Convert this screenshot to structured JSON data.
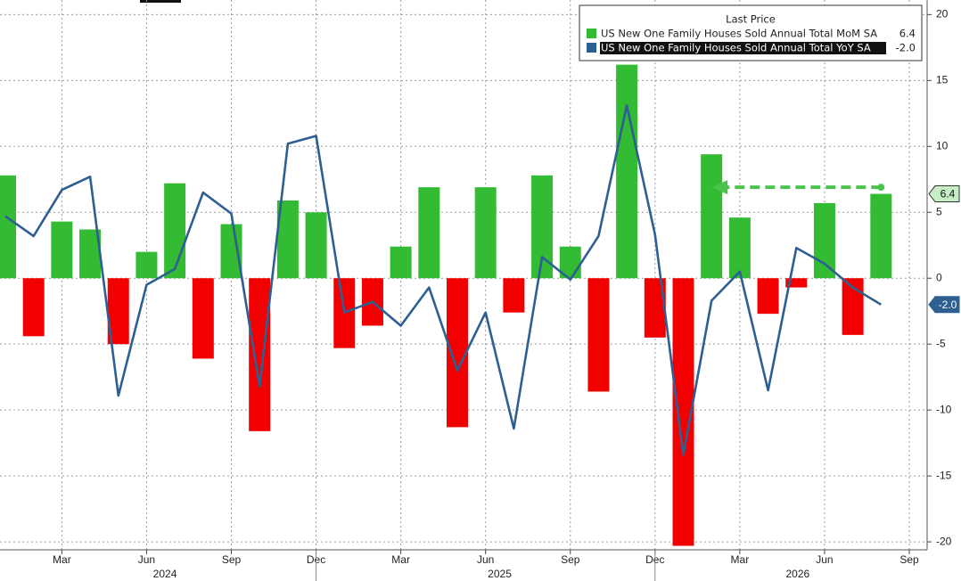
{
  "chart_data": {
    "type": "bar-line",
    "x": [
      "2024-01",
      "2024-02",
      "2024-03",
      "2024-04",
      "2024-05",
      "2024-06",
      "2024-07",
      "2024-08",
      "2024-09",
      "2024-10",
      "2024-11",
      "2024-12",
      "2025-01",
      "2025-02",
      "2025-03",
      "2025-04",
      "2025-05",
      "2025-06",
      "2025-07",
      "2025-08",
      "2025-09",
      "2025-10",
      "2025-11",
      "2025-12",
      "2026-01",
      "2026-02",
      "2026-03",
      "2026-04",
      "2026-05",
      "2026-06",
      "2026-07",
      "2026-08"
    ],
    "xlim": [
      "2024-01",
      "2026-09"
    ],
    "xticks": [
      {
        "value": "2024-03",
        "label": "Mar"
      },
      {
        "value": "2024-06",
        "label": "Jun"
      },
      {
        "value": "2024-09",
        "label": "Sep"
      },
      {
        "value": "2024-12",
        "label": "Dec"
      },
      {
        "value": "2025-03",
        "label": "Mar"
      },
      {
        "value": "2025-06",
        "label": "Jun"
      },
      {
        "value": "2025-09",
        "label": "Sep"
      },
      {
        "value": "2025-12",
        "label": "Dec"
      },
      {
        "value": "2026-03",
        "label": "Mar"
      },
      {
        "value": "2026-06",
        "label": "Jun"
      },
      {
        "value": "2026-09",
        "label": "Sep"
      }
    ],
    "year_ticks": [
      2024,
      2025,
      2026
    ],
    "ylim": [
      -20.4,
      20.7
    ],
    "yticks": [
      -20,
      -15,
      -10,
      -5,
      0,
      5,
      10,
      15,
      20
    ],
    "grid": true,
    "legend_title": "Last Price",
    "legend_position": "upper right",
    "series": [
      {
        "name": "US New One Family Houses Sold Annual Total MoM SA",
        "type": "bar",
        "color": "#33bb33",
        "negative_color": "#f20000",
        "last_value_label": "6.4",
        "values": [
          7.8,
          -4.4,
          4.3,
          3.7,
          -5.0,
          2.0,
          7.2,
          -6.1,
          4.1,
          -11.6,
          5.9,
          5.0,
          -5.3,
          -3.6,
          2.4,
          6.9,
          -11.3,
          6.9,
          -2.6,
          7.8,
          2.4,
          -8.6,
          16.2,
          -4.5,
          -20.3,
          9.4,
          4.6,
          -2.7,
          -0.7,
          5.7,
          -4.3,
          6.4
        ]
      },
      {
        "name": "US New One Family Houses Sold Annual Total YoY SA",
        "type": "line",
        "color": "#2e5f93",
        "last_value_label": "-2.0",
        "values": [
          4.7,
          3.2,
          6.7,
          7.7,
          -8.9,
          -0.5,
          0.7,
          6.5,
          4.9,
          -8.2,
          10.2,
          10.8,
          -2.6,
          -1.8,
          -3.6,
          -0.7,
          -7.0,
          -2.6,
          -11.4,
          1.6,
          -0.1,
          3.2,
          13.1,
          3.3,
          -13.4,
          -1.7,
          0.5,
          -8.5,
          2.3,
          1.1,
          -0.7,
          -2.0
        ]
      }
    ],
    "annotation_arrow": {
      "from": "2026-08",
      "to": "2026-02",
      "y": 6.9,
      "color": "#4cc34c"
    }
  }
}
